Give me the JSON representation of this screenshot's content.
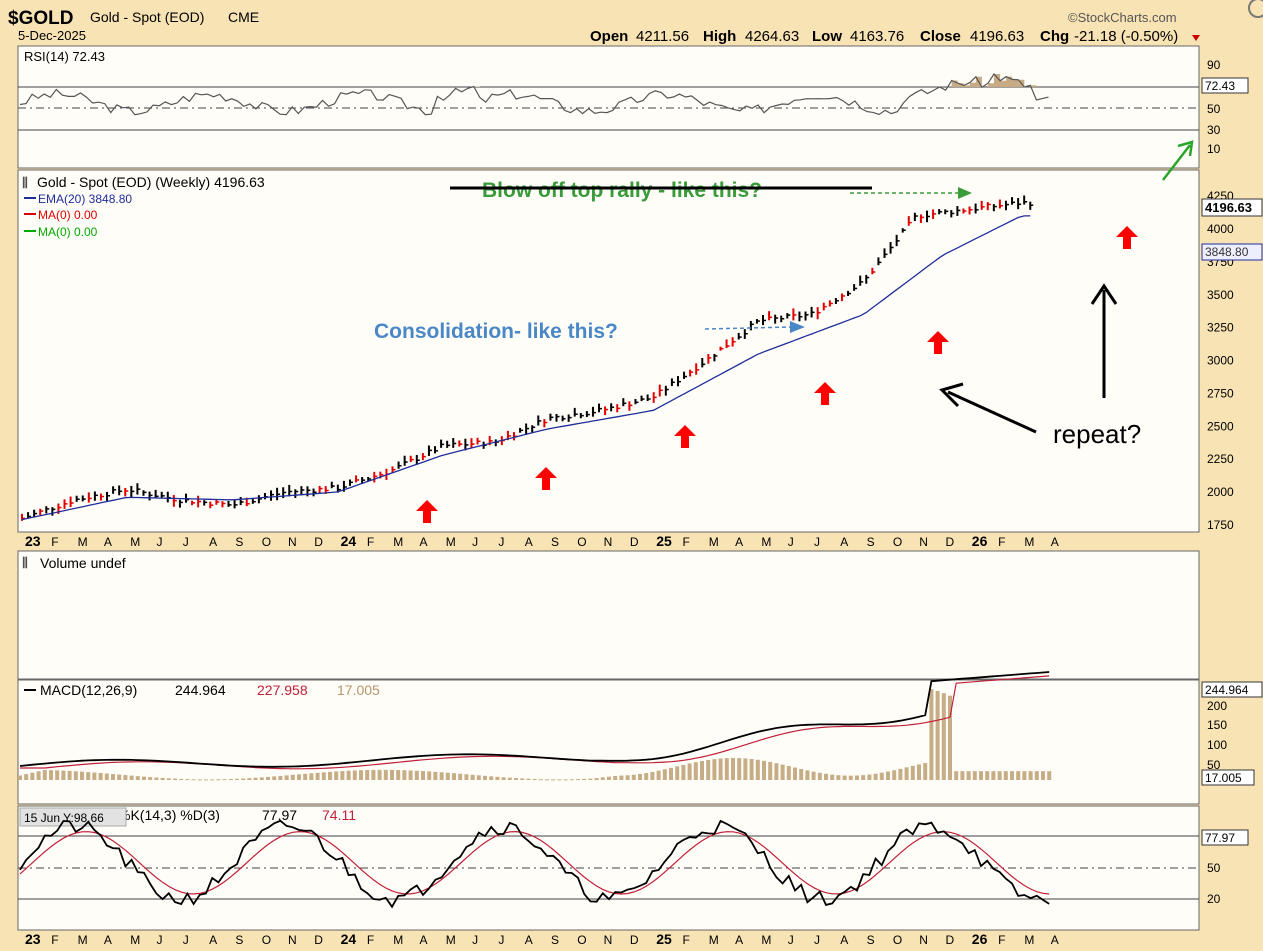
{
  "header": {
    "symbol": "$GOLD",
    "name": "Gold - Spot (EOD)",
    "exchange": "CME",
    "date": "5-Dec-2025",
    "source": "©StockCharts.com",
    "open_label": "Open",
    "open": "4211.56",
    "high_label": "High",
    "high": "4264.63",
    "low_label": "Low",
    "low": "4163.76",
    "close_label": "Close",
    "close": "4196.63",
    "chg_label": "Chg",
    "chg": "-21.18 (-0.50%)"
  },
  "rsi": {
    "label": "RSI(14) 72.43",
    "value": "72.43",
    "ticks": [
      "90",
      "70",
      "50",
      "30",
      "10"
    ]
  },
  "price": {
    "legend": "Gold - Spot (EOD) (Weekly) 4196.63",
    "ema_label": "EMA(20) 3848.80",
    "ma1_label": "MA(0) 0.00",
    "ma2_label": "MA(0) 0.00",
    "last_price": "4196.63",
    "ema_value": "3848.80",
    "ticks": [
      "4250",
      "4000",
      "3750",
      "3500",
      "3250",
      "3000",
      "2750",
      "2500",
      "2250",
      "2000",
      "1750"
    ]
  },
  "annotations": {
    "blowoff": "Blow off top rally - like this?",
    "consolidation": "Consolidation- like this?",
    "repeat": "repeat?"
  },
  "volume": {
    "label": "Volume undef"
  },
  "macd": {
    "label_a": "MACD(12,26,9)",
    "v1": "244.964",
    "v2": "227.958",
    "v3": "17.005",
    "ticks": [
      "200",
      "150",
      "100",
      "50"
    ],
    "last": "244.964",
    "hist_last": "17.005"
  },
  "stoch": {
    "tooltip": "15 Jun Y:98.66",
    "label_a": "%K(14,3) %D(3)",
    "k": "77.97",
    "d": "74.11",
    "ticks": [
      "50",
      "20"
    ],
    "last": "77.97"
  },
  "xaxis": [
    "23",
    "F",
    "M",
    "A",
    "M",
    "J",
    "J",
    "A",
    "S",
    "O",
    "N",
    "D",
    "24",
    "F",
    "M",
    "A",
    "M",
    "J",
    "J",
    "A",
    "S",
    "O",
    "N",
    "D",
    "25",
    "F",
    "M",
    "A",
    "M",
    "J",
    "J",
    "A",
    "S",
    "O",
    "N",
    "D",
    "26",
    "F",
    "M",
    "A"
  ],
  "colors": {
    "background": "#f8e3b4",
    "panel": "#fffdf8",
    "up": "#000000",
    "down": "#e00000",
    "ema": "#1f2d9b",
    "annot_green": "#3a9b3a",
    "annot_blue": "#4a87c6",
    "arrow_red": "#ff0000",
    "macd_signal": "#c0203a",
    "histogram": "#c7ad85"
  },
  "chart_data": {
    "type": "line",
    "title": "Gold - Spot (EOD) (Weekly)",
    "series": [
      {
        "name": "Gold - Spot (EOD) (Weekly)",
        "x": [
          "2023-01",
          "2023-03",
          "2023-05",
          "2023-07",
          "2023-09",
          "2023-11",
          "2024-01",
          "2024-03",
          "2024-05",
          "2024-07",
          "2024-09",
          "2024-11",
          "2025-01",
          "2025-03",
          "2025-05",
          "2025-07",
          "2025-09",
          "2025-11",
          "2026-01",
          "2026-03"
        ],
        "values": [
          1800,
          1940,
          2020,
          1940,
          1900,
          2000,
          2030,
          2160,
          2350,
          2380,
          2560,
          2620,
          2720,
          3000,
          3300,
          3350,
          3600,
          4100,
          4150,
          4200
        ]
      },
      {
        "name": "EMA(20)",
        "x": [
          "2023-01",
          "2023-05",
          "2023-09",
          "2024-01",
          "2024-05",
          "2024-09",
          "2025-01",
          "2025-05",
          "2025-09",
          "2025-12",
          "2026-03"
        ],
        "values": [
          1790,
          1960,
          1940,
          2000,
          2280,
          2480,
          2620,
          3050,
          3350,
          3800,
          4100
        ]
      }
    ],
    "ylim": [
      1700,
      4350
    ]
  }
}
